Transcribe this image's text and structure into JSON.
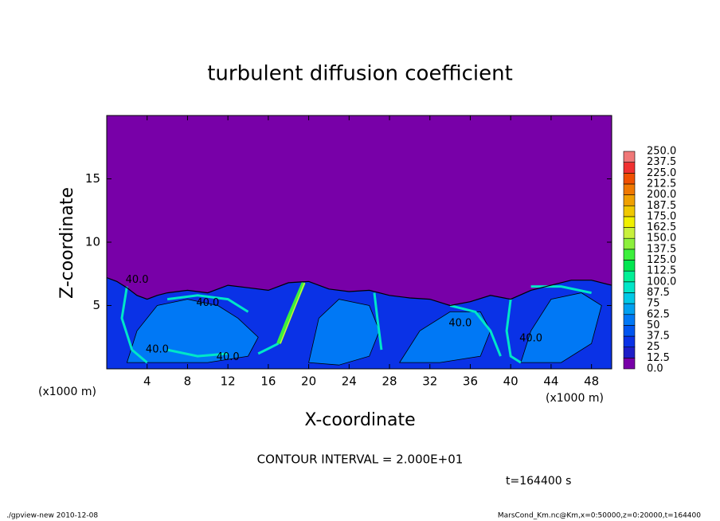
{
  "chart_data": {
    "type": "contour",
    "title": "turbulent diffusion coefficient",
    "xlabel": "X-coordinate",
    "ylabel": "Z-coordinate",
    "x_unit_label": "(x1000 m)",
    "y_unit_label": "(x1000 m)",
    "xlim": [
      0,
      50
    ],
    "ylim": [
      0,
      20
    ],
    "xticks": [
      4,
      8,
      12,
      16,
      20,
      24,
      28,
      32,
      36,
      40,
      44,
      48
    ],
    "yticks": [
      5,
      10,
      15
    ],
    "levels": [
      {
        "value": 0,
        "label": "0.0"
      },
      12.5,
      25,
      37.5,
      50,
      62.5,
      75,
      87.5,
      {
        "value": 100,
        "label": "100.0"
      },
      112.5,
      {
        "value": 125,
        "label": "125.0"
      },
      137.5,
      {
        "value": 150,
        "label": "150.0"
      },
      162.5,
      {
        "value": 175,
        "label": "175.0"
      },
      187.5,
      {
        "value": 200,
        "label": "200.0"
      },
      212.5,
      {
        "value": 225,
        "label": "225.0"
      },
      237.5,
      {
        "value": 250,
        "label": "250.0"
      }
    ],
    "colors": [
      "#7800a8",
      "#1e1ec8",
      "#0a32e6",
      "#0055f0",
      "#0078f5",
      "#00a0f0",
      "#00c8e6",
      "#00e6c8",
      "#00f096",
      "#00e650",
      "#3cf03c",
      "#8cf03c",
      "#c8f03c",
      "#f0f000",
      "#f0c800",
      "#f0a000",
      "#f07800",
      "#f05000",
      "#f03030",
      "#f07878"
    ],
    "contour_labels": [
      "40.0",
      "40.0",
      "40.0",
      "40.0",
      "40.0",
      "40.0"
    ],
    "contour_interval": "CONTOUR INTERVAL = 2.000E+01",
    "time_label": "t=164400 s",
    "footer_left": "./gpview-new   2010-12-08",
    "footer_right": "MarsCond_Km.nc@Km,x=0:50000,z=0:20000,t=164400"
  }
}
